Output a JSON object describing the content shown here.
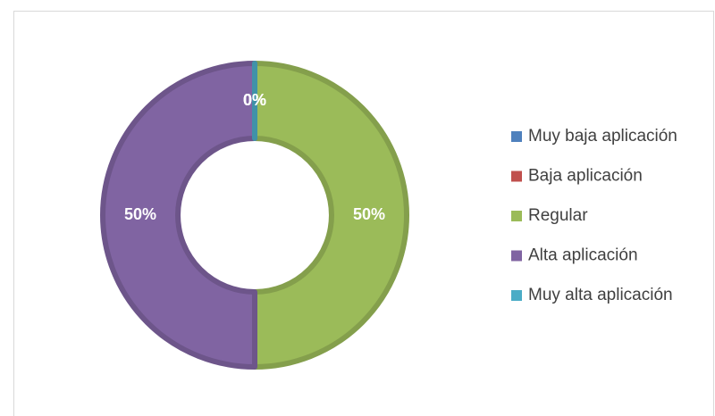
{
  "chart_data": {
    "type": "donut",
    "categories": [
      "Muy baja aplicación",
      "Baja aplicación",
      "Regular",
      "Alta aplicación",
      "Muy alta aplicación"
    ],
    "values": [
      0,
      0,
      50,
      50,
      0
    ],
    "value_labels": [
      "0%",
      "0%",
      "50%",
      "50%",
      "0%"
    ],
    "colors": [
      "#4f81bd",
      "#c0504d",
      "#9bbb59",
      "#8064a2",
      "#4bacc6"
    ],
    "legend": "right"
  }
}
